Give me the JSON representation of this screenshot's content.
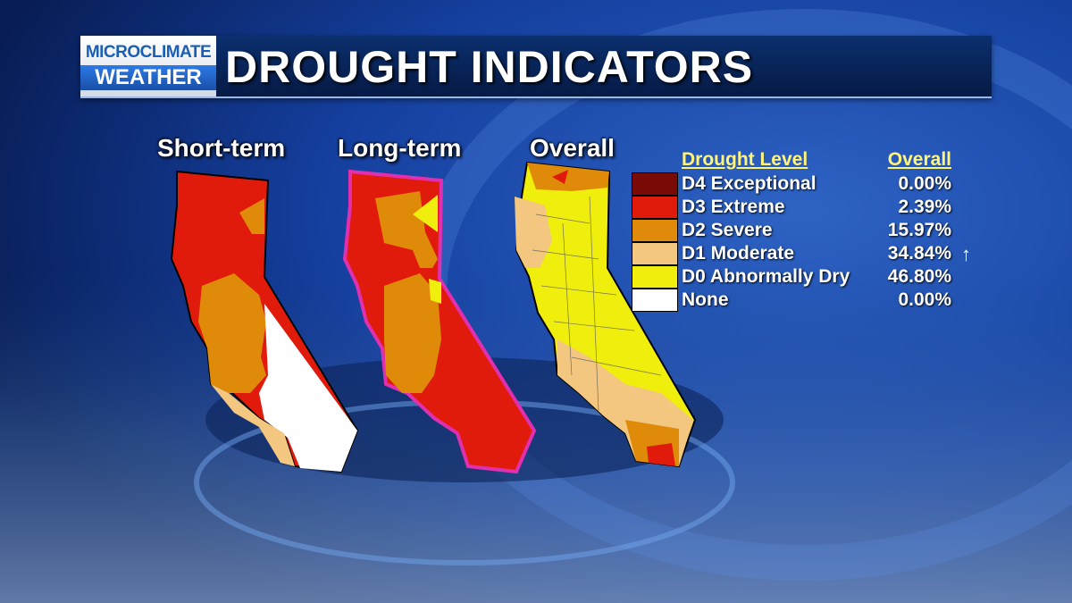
{
  "header": {
    "logo_line1": "MICROCLIMATE",
    "logo_line2": "WEATHER",
    "title": "DROUGHT INDICATORS"
  },
  "maps": [
    {
      "label": "Short-term"
    },
    {
      "label": "Long-term"
    },
    {
      "label": "Overall"
    }
  ],
  "legend": {
    "col_level": "Drought Level",
    "col_overall": "Overall",
    "rows": [
      {
        "label": "D4 Exceptional",
        "value": "0.00%",
        "color": "#7a0a06"
      },
      {
        "label": "D3 Extreme",
        "value": "2.39%",
        "color": "#e11b0c"
      },
      {
        "label": "D2 Severe",
        "value": "15.97%",
        "color": "#e08a0a"
      },
      {
        "label": "D1 Moderate",
        "value": "34.84%",
        "color": "#f3c77f",
        "trend": "up-arrow-icon"
      },
      {
        "label": "D0 Abnormally Dry",
        "value": "46.80%",
        "color": "#f0ee0c"
      },
      {
        "label": "None",
        "value": "0.00%",
        "color": "#ffffff"
      }
    ]
  },
  "colors": {
    "background": "#0a2a66",
    "accent": "#fff57a"
  }
}
